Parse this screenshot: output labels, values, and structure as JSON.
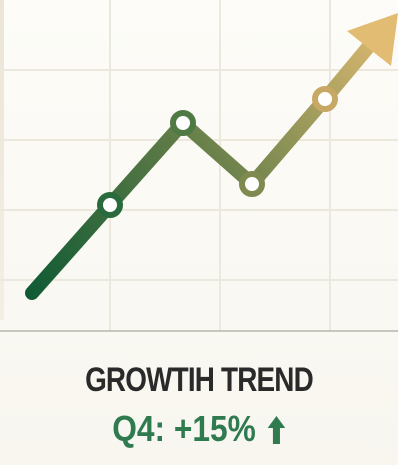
{
  "label": {
    "title": "GROWTIH TREND",
    "value": "Q4: +15%"
  },
  "icons": {
    "up": "up-arrow-icon"
  },
  "colors": {
    "line_start": "#0f5a34",
    "line_end": "#e2bc72",
    "value_green": "#2f7a4f",
    "title_dark": "#2a2a2a",
    "grid": "#ece8dd",
    "baseline": "#c9c6bd"
  }
}
